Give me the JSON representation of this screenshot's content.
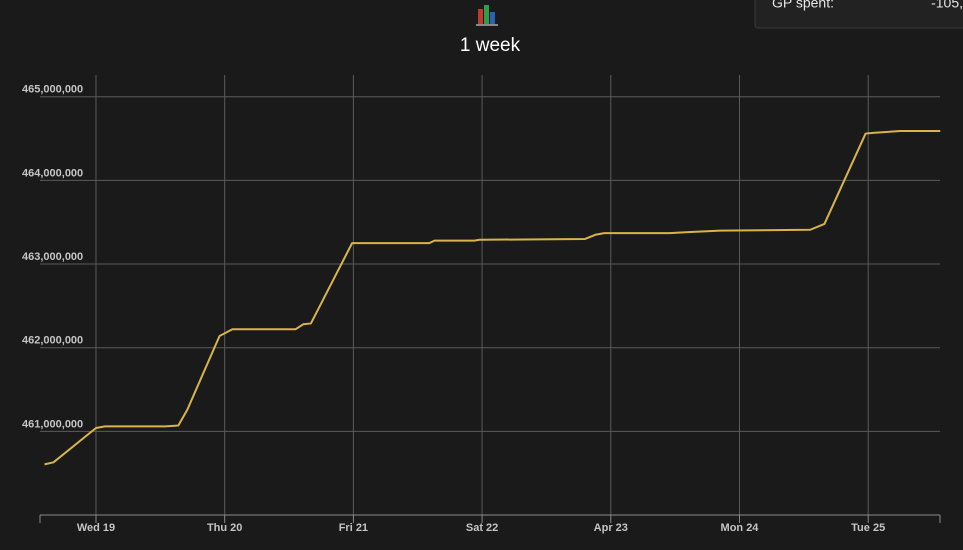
{
  "chart_data": {
    "type": "line",
    "title": "1 week",
    "x": [
      18.6,
      18.67,
      19.0,
      19.07,
      19.54,
      19.64,
      19.71,
      19.96,
      20.06,
      20.55,
      20.61,
      20.67,
      20.99,
      21.59,
      21.63,
      21.94,
      21.98,
      22.8,
      22.88,
      22.95,
      23.46,
      23.58,
      23.85,
      24.55,
      24.66,
      24.98,
      25.05,
      25.25,
      25.56
    ],
    "values": [
      460605000,
      460630000,
      461040000,
      461060000,
      461060000,
      461070000,
      461260000,
      462140000,
      462220000,
      462220000,
      462280000,
      462290000,
      463250000,
      463250000,
      463280000,
      463280000,
      463290000,
      463300000,
      463350000,
      463370000,
      463370000,
      463380000,
      463400000,
      463410000,
      463480000,
      464560000,
      464570000,
      464590000,
      464590000
    ],
    "color": "#d9b44a",
    "xlim": [
      18.565,
      25.558
    ],
    "xticks": [
      {
        "value": 19,
        "label": "Wed 19"
      },
      {
        "value": 20,
        "label": "Thu 20"
      },
      {
        "value": 21,
        "label": "Fri 21"
      },
      {
        "value": 22,
        "label": "Sat 22"
      },
      {
        "value": 23,
        "label": "Apr 23"
      },
      {
        "value": 24,
        "label": "Mon 24"
      },
      {
        "value": 25,
        "label": "Tue 25"
      }
    ],
    "ylim": [
      460000000,
      465260000
    ],
    "yticks": [
      {
        "value": 461000000,
        "label": "461,000,000"
      },
      {
        "value": 462000000,
        "label": "462,000,000"
      },
      {
        "value": 463000000,
        "label": "463,000,000"
      },
      {
        "value": 464000000,
        "label": "464,000,000"
      },
      {
        "value": 465000000,
        "label": "465,000,000"
      }
    ],
    "grid": true
  },
  "panel": {
    "label": "GP spent:",
    "value": "-105,"
  }
}
